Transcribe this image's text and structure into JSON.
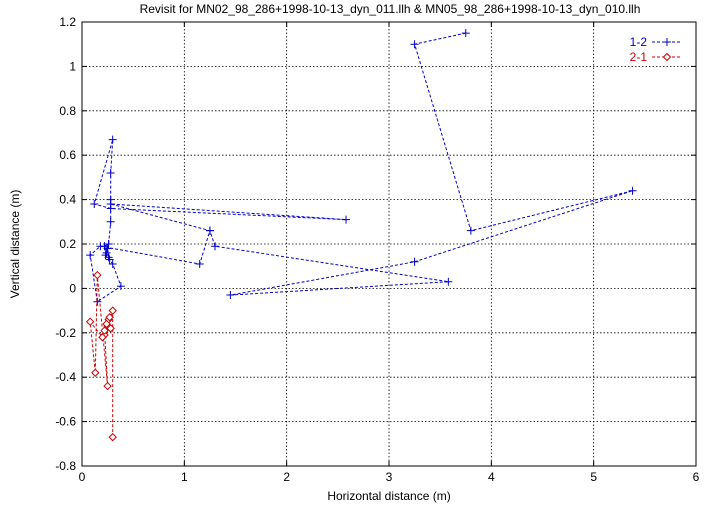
{
  "chart_data": {
    "type": "line",
    "title": "Revisit for MN02_98_286+1998-10-13_dyn_011.llh & MN05_98_286+1998-10-13_dyn_010.llh",
    "xlabel": "Horizontal distance (m)",
    "ylabel": "Vertical distance (m)",
    "xlim": [
      0,
      6
    ],
    "ylim": [
      -0.8,
      1.2
    ],
    "xticks": [
      0,
      1,
      2,
      3,
      4,
      5,
      6
    ],
    "yticks": [
      -0.8,
      -0.6,
      -0.4,
      -0.2,
      0,
      0.2,
      0.4,
      0.6,
      0.8,
      1,
      1.2
    ],
    "grid": true,
    "legend_position": "top-right",
    "series": [
      {
        "name": "1-2",
        "color": "#0000cc",
        "marker": "plus",
        "line_style": "dashed",
        "points": [
          [
            3.75,
            1.15
          ],
          [
            3.25,
            1.1
          ],
          [
            3.8,
            0.26
          ],
          [
            5.38,
            0.44
          ],
          [
            3.25,
            0.12
          ],
          [
            1.45,
            -0.03
          ],
          [
            3.58,
            0.03
          ],
          [
            1.3,
            0.19
          ],
          [
            1.25,
            0.26
          ],
          [
            0.28,
            0.38
          ],
          [
            2.58,
            0.31
          ],
          [
            0.28,
            0.36
          ],
          [
            0.12,
            0.38
          ],
          [
            0.3,
            0.67
          ],
          [
            0.28,
            0.52
          ],
          [
            0.28,
            0.4
          ],
          [
            0.28,
            0.3
          ],
          [
            0.26,
            0.2
          ],
          [
            0.22,
            0.19
          ],
          [
            0.24,
            0.16
          ],
          [
            0.26,
            0.14
          ],
          [
            0.25,
            0.18
          ],
          [
            0.23,
            0.15
          ],
          [
            0.27,
            0.13
          ],
          [
            0.3,
            0.11
          ],
          [
            0.38,
            0.01
          ],
          [
            0.15,
            -0.06
          ],
          [
            0.08,
            0.15
          ],
          [
            0.18,
            0.19
          ],
          [
            1.15,
            0.11
          ],
          [
            1.25,
            0.26
          ]
        ]
      },
      {
        "name": "2-1",
        "color": "#cc0000",
        "marker": "diamond",
        "line_style": "dashed",
        "points": [
          [
            0.3,
            -0.67
          ],
          [
            0.3,
            -0.1
          ],
          [
            0.25,
            -0.17
          ],
          [
            0.22,
            -0.21
          ],
          [
            0.26,
            -0.14
          ],
          [
            0.24,
            -0.16
          ],
          [
            0.27,
            -0.13
          ],
          [
            0.22,
            -0.19
          ],
          [
            0.25,
            -0.44
          ],
          [
            0.15,
            0.06
          ],
          [
            0.13,
            -0.38
          ],
          [
            0.08,
            -0.15
          ],
          [
            0.2,
            -0.22
          ],
          [
            0.28,
            -0.18
          ]
        ]
      }
    ]
  }
}
